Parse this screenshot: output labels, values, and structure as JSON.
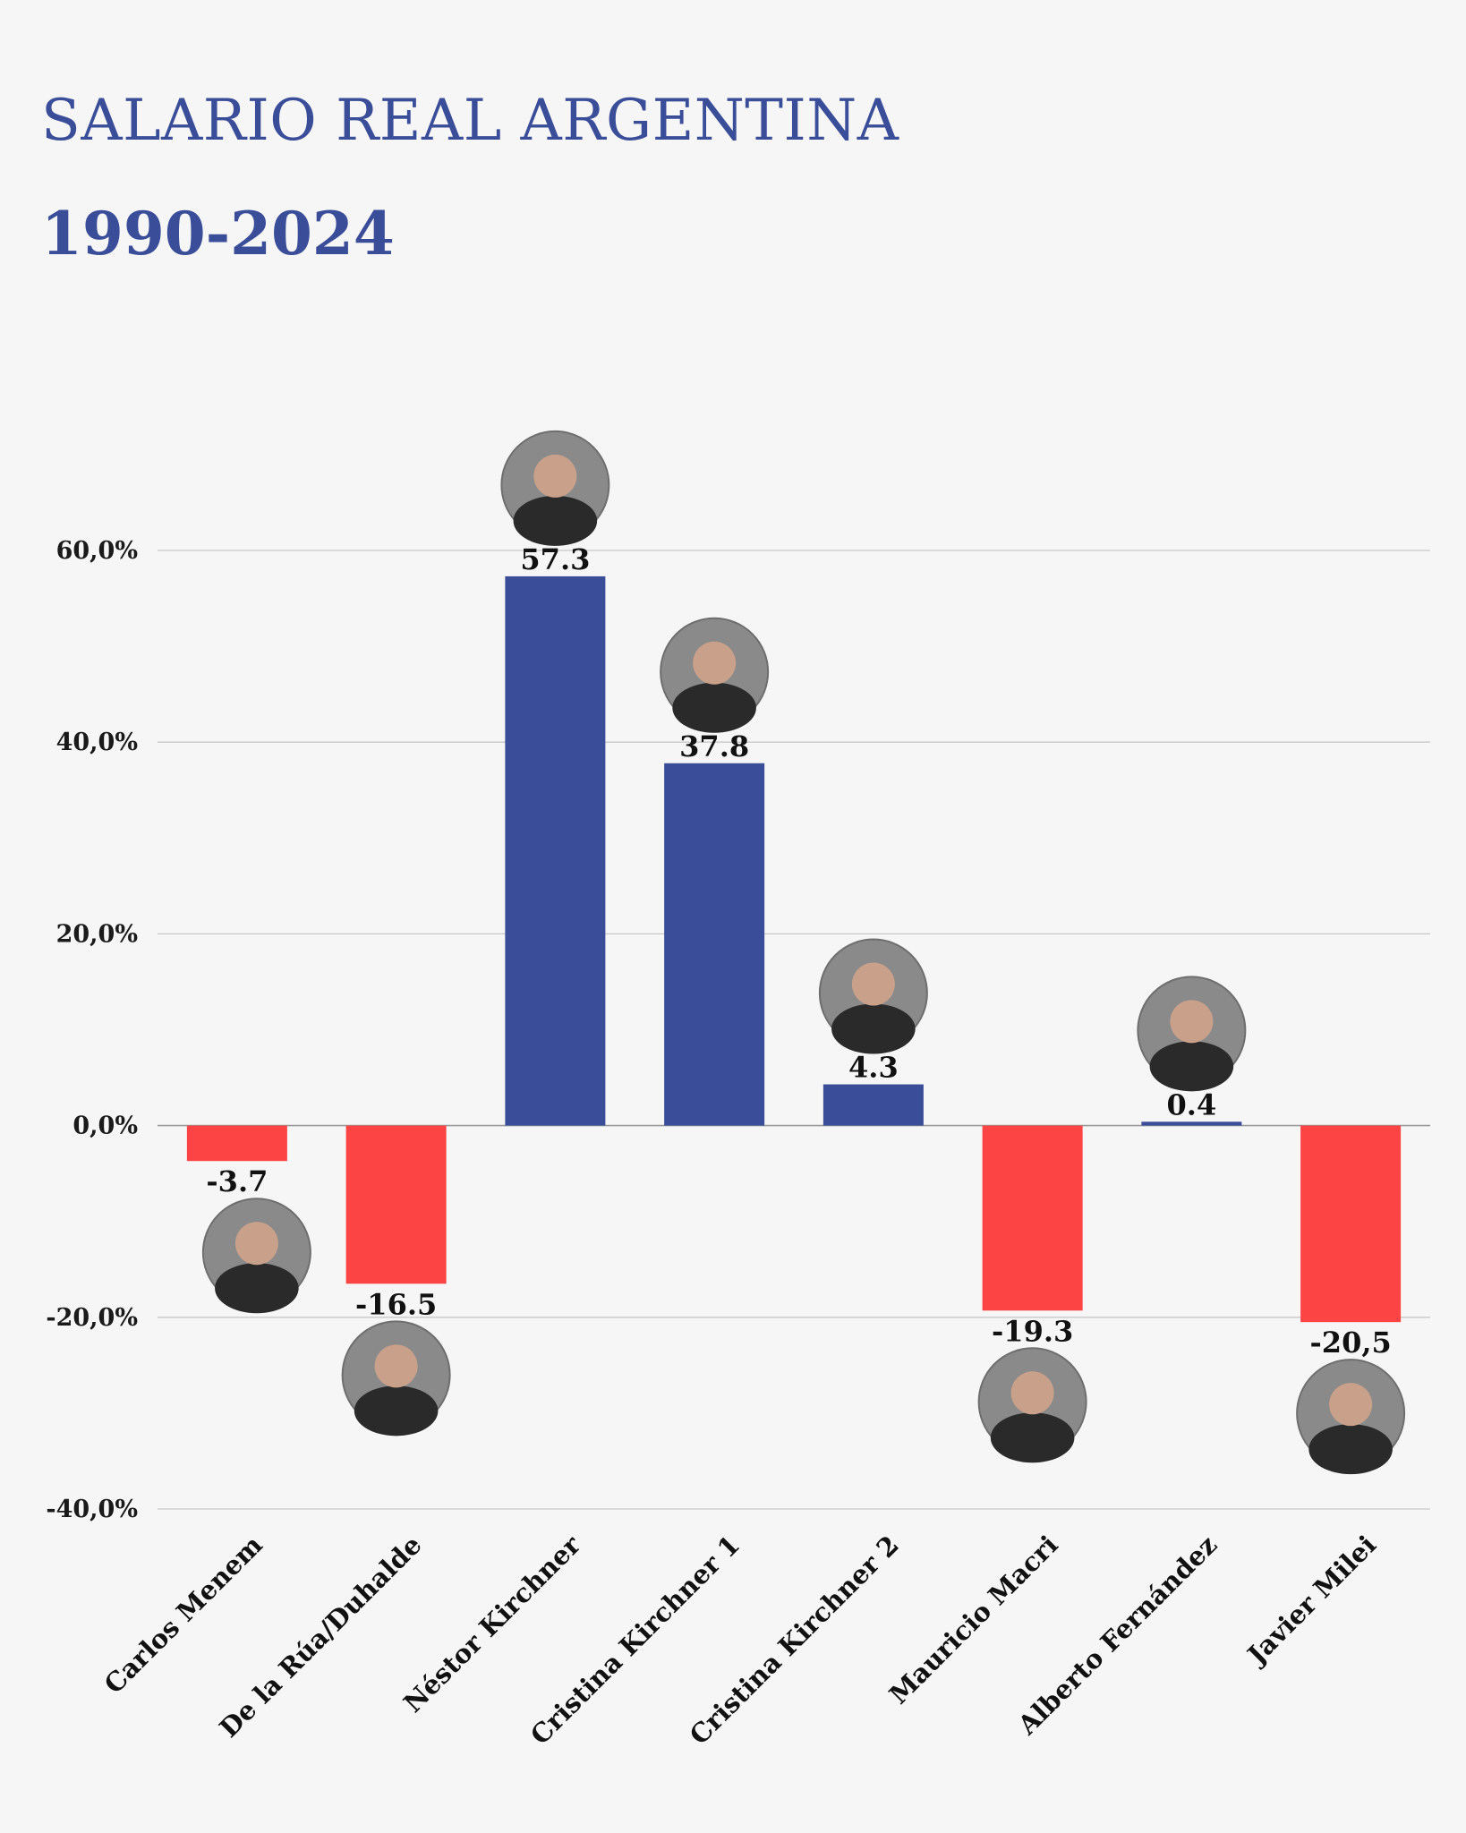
{
  "header": {
    "title": "SALARIO REAL ARGENTINA",
    "subtitle": "1990-2024"
  },
  "chart_data": {
    "type": "bar",
    "categories": [
      "Carlos Menem",
      "De la Rúa/Duhalde",
      "Néstor Kirchner",
      "Cristina Kirchner 1",
      "Cristina Kirchner 2",
      "Mauricio Macri",
      "Alberto Fernández",
      "Javier Milei"
    ],
    "values": [
      -3.7,
      -16.5,
      57.3,
      37.8,
      4.3,
      -19.3,
      0.4,
      -20.5
    ],
    "value_labels": [
      "-3.7",
      "-16.5",
      "57.3",
      "37.8",
      "4.3",
      "-19.3",
      "0.4",
      "-20,5"
    ],
    "y_ticks": [
      60,
      40,
      20,
      0,
      -20,
      -40
    ],
    "y_tick_labels": [
      "60,0%",
      "40,0%",
      "20,0%",
      "0,0%",
      "-20,0%",
      "-40,0%"
    ],
    "ylim": [
      -40,
      60
    ],
    "grid": true,
    "colors": {
      "positive": "#3a4d99",
      "negative": "#fc4444"
    },
    "xlabel": "",
    "ylabel": ""
  }
}
